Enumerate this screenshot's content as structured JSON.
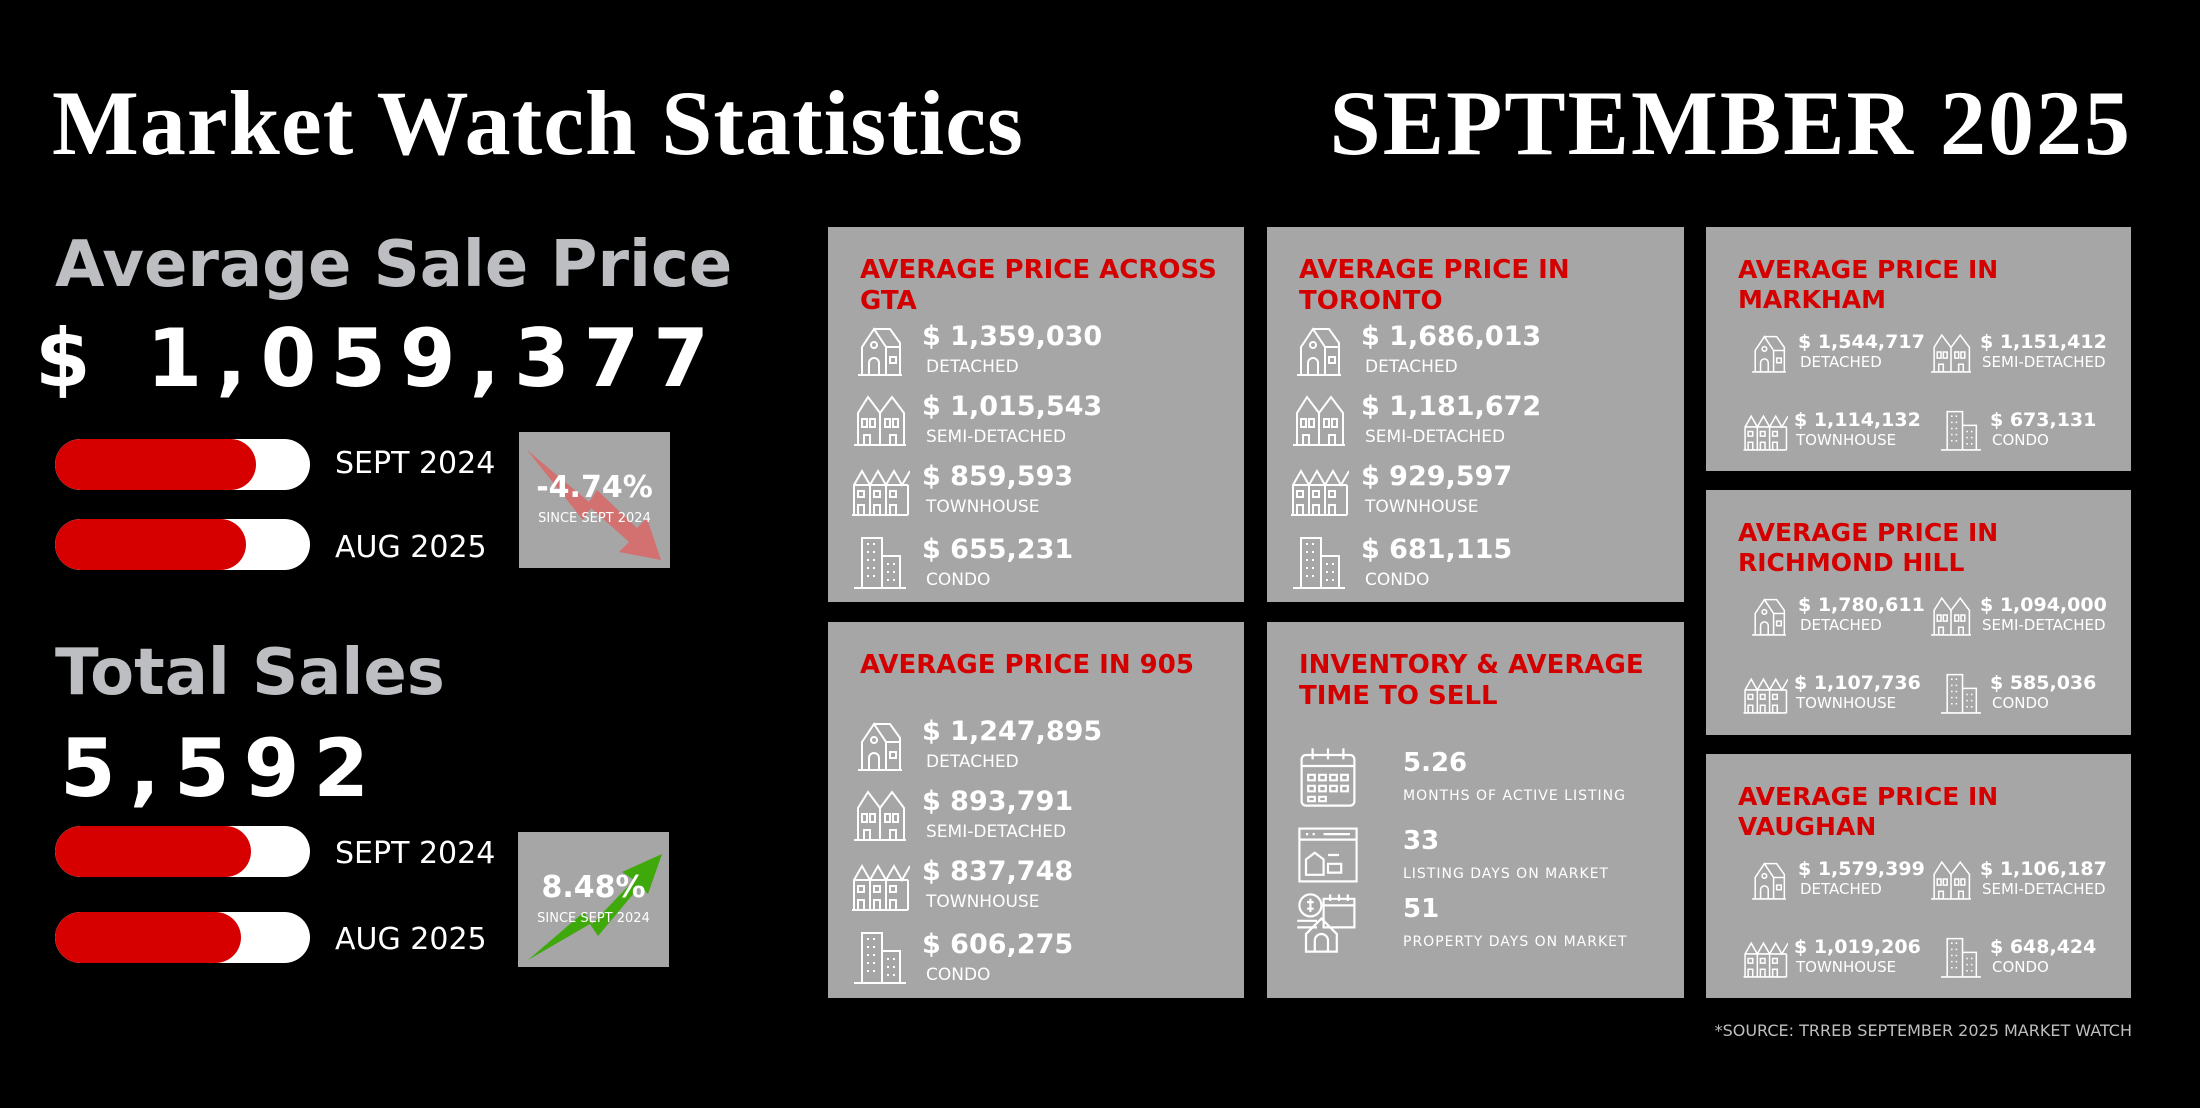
{
  "header": {
    "title": "Market Watch Statistics",
    "period": "SEPTEMBER 2025"
  },
  "average_sale_price": {
    "title": "Average Sale Price",
    "value": "$ 1,059,377",
    "bars": [
      {
        "label": "SEPT 2024",
        "fill_fraction": 0.79
      },
      {
        "label": "AUG 2025",
        "fill_fraction": 0.75
      }
    ],
    "change": {
      "value": "-4.74%",
      "caption": "SINCE SEPT 2024",
      "direction": "down",
      "arrow_color": "#d86a6a"
    }
  },
  "total_sales": {
    "title": "Total Sales",
    "value": "5,592",
    "bars": [
      {
        "label": "SEPT 2024",
        "fill_fraction": 0.77
      },
      {
        "label": "AUG 2025",
        "fill_fraction": 0.73
      }
    ],
    "change": {
      "value": "8.48%",
      "caption": "SINCE SEPT 2024",
      "direction": "up",
      "arrow_color": "#3fa80a"
    }
  },
  "cards": {
    "gta": {
      "title": "AVERAGE PRICE ACROSS GTA",
      "items": [
        {
          "icon": "detached-house-icon",
          "price": "$ 1,359,030",
          "label": "DETACHED"
        },
        {
          "icon": "semi-detached-icon",
          "price": "$ 1,015,543",
          "label": "SEMI-DETACHED"
        },
        {
          "icon": "townhouse-icon",
          "price": "$ 859,593",
          "label": "TOWNHOUSE"
        },
        {
          "icon": "condo-icon",
          "price": "$ 655,231",
          "label": "CONDO"
        }
      ]
    },
    "toronto": {
      "title": "AVERAGE PRICE IN TORONTO",
      "items": [
        {
          "icon": "detached-house-icon",
          "price": "$ 1,686,013",
          "label": "DETACHED"
        },
        {
          "icon": "semi-detached-icon",
          "price": "$ 1,181,672",
          "label": "SEMI-DETACHED"
        },
        {
          "icon": "townhouse-icon",
          "price": "$ 929,597",
          "label": "TOWNHOUSE"
        },
        {
          "icon": "condo-icon",
          "price": "$ 681,115",
          "label": "CONDO"
        }
      ]
    },
    "region_905": {
      "title": "AVERAGE PRICE IN 905",
      "items": [
        {
          "icon": "detached-house-icon",
          "price": "$ 1,247,895",
          "label": "DETACHED"
        },
        {
          "icon": "semi-detached-icon",
          "price": "$ 893,791",
          "label": "SEMI-DETACHED"
        },
        {
          "icon": "townhouse-icon",
          "price": "$ 837,748",
          "label": "TOWNHOUSE"
        },
        {
          "icon": "condo-icon",
          "price": "$ 606,275",
          "label": "CONDO"
        }
      ]
    },
    "inventory": {
      "title": "INVENTORY & AVERAGE TIME TO SELL",
      "items": [
        {
          "icon": "calendar-icon",
          "value": "5.26",
          "label": "MONTHS OF ACTIVE LISTING"
        },
        {
          "icon": "listing-icon",
          "value": "33",
          "label": "LISTING DAYS ON MARKET"
        },
        {
          "icon": "property-calendar-icon",
          "value": "51",
          "label": "PROPERTY DAYS ON MARKET"
        }
      ]
    },
    "markham": {
      "title": "AVERAGE PRICE IN MARKHAM",
      "items": [
        {
          "icon": "detached-house-icon",
          "price": "$ 1,544,717",
          "label": "DETACHED"
        },
        {
          "icon": "semi-detached-icon",
          "price": "$ 1,151,412",
          "label": "SEMI-DETACHED"
        },
        {
          "icon": "townhouse-icon",
          "price": "$ 1,114,132",
          "label": "TOWNHOUSE"
        },
        {
          "icon": "condo-icon",
          "price": "$ 673,131",
          "label": "CONDO"
        }
      ]
    },
    "richmond_hill": {
      "title": "AVERAGE PRICE IN RICHMOND HILL",
      "items": [
        {
          "icon": "detached-house-icon",
          "price": "$ 1,780,611",
          "label": "DETACHED"
        },
        {
          "icon": "semi-detached-icon",
          "price": "$ 1,094,000",
          "label": "SEMI-DETACHED"
        },
        {
          "icon": "townhouse-icon",
          "price": "$ 1,107,736",
          "label": "TOWNHOUSE"
        },
        {
          "icon": "condo-icon",
          "price": "$ 585,036",
          "label": "CONDO"
        }
      ]
    },
    "vaughan": {
      "title": "AVERAGE PRICE IN VAUGHAN",
      "items": [
        {
          "icon": "detached-house-icon",
          "price": "$ 1,579,399",
          "label": "DETACHED"
        },
        {
          "icon": "semi-detached-icon",
          "price": "$ 1,106,187",
          "label": "SEMI-DETACHED"
        },
        {
          "icon": "townhouse-icon",
          "price": "$ 1,019,206",
          "label": "TOWNHOUSE"
        },
        {
          "icon": "condo-icon",
          "price": "$ 648,424",
          "label": "CONDO"
        }
      ]
    }
  },
  "colors": {
    "accent_red": "#d40000",
    "card_gray": "#a6a6a6",
    "subtitle_gray": "#bcbec2"
  },
  "footer": {
    "source": "*SOURCE: TRREB SEPTEMBER 2025 MARKET WATCH"
  }
}
